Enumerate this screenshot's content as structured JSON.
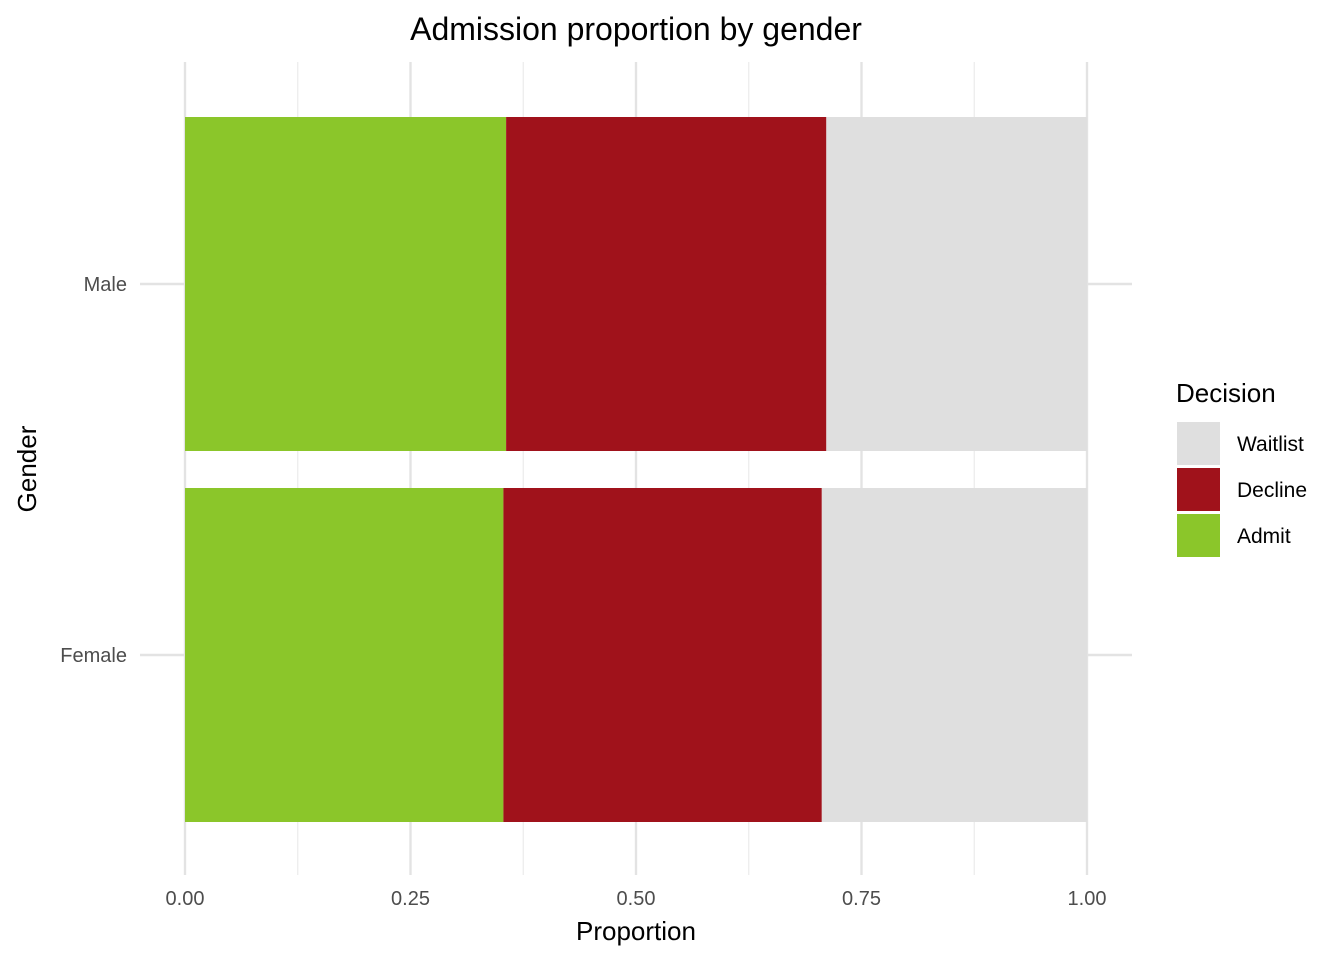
{
  "chart_data": {
    "type": "bar",
    "orientation": "horizontal",
    "stacked": true,
    "title": "Admission proportion by gender",
    "xlabel": "Proportion",
    "ylabel": "Gender",
    "xlim": [
      0,
      1
    ],
    "x_ticks": [
      0,
      0.25,
      0.5,
      0.75,
      1
    ],
    "x_tick_labels": [
      "0.00",
      "0.25",
      "0.50",
      "0.75",
      "1.00"
    ],
    "categories": [
      "Male",
      "Female"
    ],
    "series": [
      {
        "name": "Admit",
        "color": "#8bc62a",
        "values": [
          0.356,
          0.353
        ]
      },
      {
        "name": "Decline",
        "color": "#a0121b",
        "values": [
          0.355,
          0.353
        ]
      },
      {
        "name": "Waitlist",
        "color": "#dfdfdf",
        "values": [
          0.289,
          0.294
        ]
      }
    ],
    "legend": {
      "title": "Decision",
      "position": "right",
      "order": [
        "Waitlist",
        "Decline",
        "Admit"
      ]
    },
    "grid": true
  }
}
